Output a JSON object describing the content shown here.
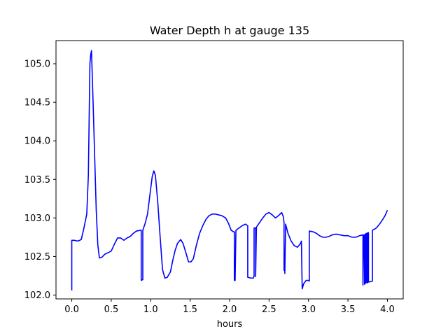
{
  "chart_data": {
    "type": "line",
    "title": "Water Depth h at gauge 135",
    "xlabel": "hours",
    "ylabel": "",
    "xlim": [
      -0.2,
      4.2
    ],
    "ylim": [
      101.95,
      105.3
    ],
    "xticks": [
      0.0,
      0.5,
      1.0,
      1.5,
      2.0,
      2.5,
      3.0,
      3.5,
      4.0
    ],
    "xtick_labels": [
      "0.0",
      "0.5",
      "1.0",
      "1.5",
      "2.0",
      "2.5",
      "3.0",
      "3.5",
      "4.0"
    ],
    "yticks": [
      102.0,
      102.5,
      103.0,
      103.5,
      104.0,
      104.5,
      105.0
    ],
    "ytick_labels": [
      "102.0",
      "102.5",
      "103.0",
      "103.5",
      "104.0",
      "104.5",
      "105.0"
    ],
    "grid": false,
    "colors": {
      "line": "#0000ff",
      "axes": "#000000",
      "background": "#ffffff"
    },
    "series": [
      {
        "x": [
          0.0,
          0.0,
          0.03,
          0.08,
          0.12,
          0.15,
          0.19,
          0.21,
          0.23,
          0.24,
          0.25,
          0.27,
          0.29,
          0.31,
          0.33,
          0.35,
          0.38,
          0.42,
          0.46,
          0.5,
          0.54,
          0.58,
          0.62,
          0.66,
          0.7,
          0.74,
          0.78,
          0.82,
          0.87,
          0.88,
          0.88,
          0.9,
          0.9,
          0.93,
          0.96,
          0.99,
          1.02,
          1.04,
          1.06,
          1.09,
          1.12,
          1.15,
          1.18,
          1.21,
          1.25,
          1.28,
          1.31,
          1.34,
          1.38,
          1.41,
          1.44,
          1.48,
          1.51,
          1.54,
          1.58,
          1.62,
          1.66,
          1.7,
          1.74,
          1.78,
          1.82,
          1.86,
          1.9,
          1.95,
          1.99,
          2.02,
          2.05,
          2.06,
          2.06,
          2.07,
          2.08,
          2.08,
          2.12,
          2.16,
          2.2,
          2.23,
          2.23,
          2.27,
          2.3,
          2.31,
          2.31,
          2.33,
          2.33,
          2.34,
          2.38,
          2.42,
          2.46,
          2.5,
          2.54,
          2.58,
          2.62,
          2.66,
          2.68,
          2.69,
          2.69,
          2.7,
          2.7,
          2.71,
          2.74,
          2.78,
          2.82,
          2.86,
          2.9,
          2.91,
          2.92,
          2.94,
          2.97,
          3.0,
          3.01,
          3.01,
          3.06,
          3.1,
          3.14,
          3.18,
          3.22,
          3.26,
          3.3,
          3.35,
          3.4,
          3.45,
          3.5,
          3.55,
          3.6,
          3.65,
          3.69,
          3.69,
          3.7,
          3.71,
          3.71,
          3.72,
          3.72,
          3.73,
          3.73,
          3.74,
          3.74,
          3.75,
          3.75,
          3.76,
          3.76,
          3.77,
          3.81,
          3.81,
          3.86,
          3.9,
          3.94,
          3.97,
          4.0
        ],
        "y": [
          102.06,
          102.71,
          102.71,
          102.7,
          102.72,
          102.85,
          103.05,
          103.55,
          105.0,
          105.12,
          105.17,
          104.5,
          103.8,
          103.1,
          102.65,
          102.48,
          102.49,
          102.53,
          102.55,
          102.57,
          102.66,
          102.74,
          102.74,
          102.71,
          102.74,
          102.76,
          102.8,
          102.83,
          102.84,
          102.84,
          102.19,
          102.2,
          102.84,
          102.93,
          103.05,
          103.3,
          103.54,
          103.61,
          103.55,
          103.2,
          102.75,
          102.33,
          102.22,
          102.23,
          102.3,
          102.45,
          102.58,
          102.67,
          102.72,
          102.67,
          102.57,
          102.43,
          102.43,
          102.47,
          102.65,
          102.8,
          102.9,
          102.98,
          103.03,
          103.05,
          103.05,
          103.04,
          103.03,
          103.0,
          102.92,
          102.84,
          102.82,
          102.82,
          102.19,
          102.19,
          102.83,
          102.84,
          102.87,
          102.9,
          102.92,
          102.9,
          102.23,
          102.22,
          102.22,
          102.24,
          102.87,
          102.87,
          102.24,
          102.88,
          102.94,
          103.0,
          103.05,
          103.07,
          103.04,
          103.0,
          103.03,
          103.07,
          103.02,
          102.94,
          102.32,
          102.31,
          102.28,
          102.92,
          102.8,
          102.7,
          102.64,
          102.62,
          102.67,
          102.7,
          102.08,
          102.15,
          102.19,
          102.19,
          102.18,
          102.83,
          102.82,
          102.8,
          102.77,
          102.75,
          102.75,
          102.76,
          102.78,
          102.79,
          102.78,
          102.77,
          102.77,
          102.75,
          102.75,
          102.77,
          102.78,
          102.13,
          102.78,
          102.78,
          102.14,
          102.79,
          102.15,
          102.8,
          102.16,
          102.8,
          102.16,
          102.81,
          102.16,
          102.81,
          102.17,
          102.17,
          102.18,
          102.84,
          102.87,
          102.92,
          102.98,
          103.03,
          103.1
        ]
      }
    ]
  }
}
